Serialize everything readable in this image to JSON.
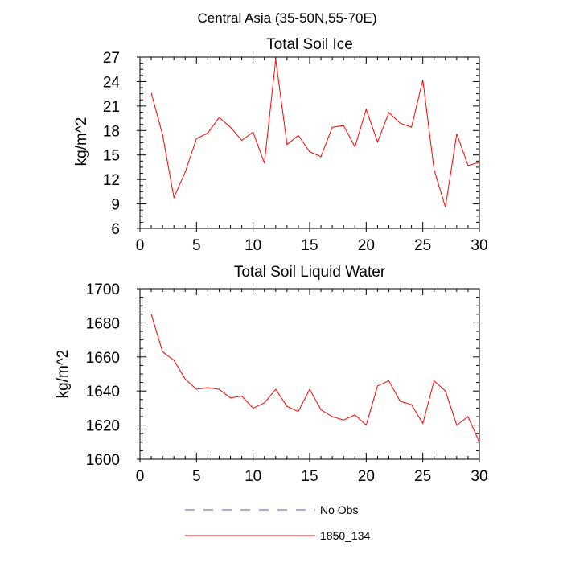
{
  "page_title": "Central Asia (35-50N,55-70E)",
  "colors": {
    "series": "#ff0000",
    "axis": "#000000",
    "no_obs": "#5a5aa0"
  },
  "legend": {
    "items": [
      {
        "label": "No Obs",
        "style": "dashed",
        "color": "#5a5aa0"
      },
      {
        "label": "1850_134",
        "style": "solid",
        "color": "#ff0000"
      }
    ]
  },
  "chart_data": [
    {
      "type": "line",
      "title": "Total Soil Ice",
      "xlabel": "",
      "ylabel": "kg/m^2",
      "xlim": [
        0,
        30
      ],
      "ylim": [
        6,
        27
      ],
      "xticks": [
        0,
        5,
        10,
        15,
        20,
        25,
        30
      ],
      "yticks": [
        6,
        9,
        12,
        15,
        18,
        21,
        24,
        27
      ],
      "series": [
        {
          "name": "1850_134",
          "x": [
            1,
            2,
            3,
            4,
            5,
            6,
            7,
            8,
            9,
            10,
            11,
            12,
            13,
            14,
            15,
            16,
            17,
            18,
            19,
            20,
            21,
            22,
            23,
            24,
            25,
            26,
            27,
            28,
            29,
            30
          ],
          "y": [
            22.6,
            17.5,
            9.8,
            12.9,
            17.0,
            17.7,
            19.6,
            18.4,
            16.8,
            17.8,
            14.0,
            26.7,
            16.3,
            17.4,
            15.4,
            14.8,
            18.4,
            18.6,
            16.0,
            20.6,
            16.6,
            20.2,
            18.9,
            18.4,
            24.2,
            13.2,
            8.6,
            17.6,
            13.7,
            14.1
          ]
        }
      ]
    },
    {
      "type": "line",
      "title": "Total Soil Liquid Water",
      "xlabel": "",
      "ylabel": "kg/m^2",
      "xlim": [
        0,
        30
      ],
      "ylim": [
        1600,
        1700
      ],
      "xticks": [
        0,
        5,
        10,
        15,
        20,
        25,
        30
      ],
      "yticks": [
        1600,
        1620,
        1640,
        1660,
        1680,
        1700
      ],
      "series": [
        {
          "name": "1850_134",
          "x": [
            1,
            2,
            3,
            4,
            5,
            6,
            7,
            8,
            9,
            10,
            11,
            12,
            13,
            14,
            15,
            16,
            17,
            18,
            19,
            20,
            21,
            22,
            23,
            24,
            25,
            26,
            27,
            28,
            29,
            30
          ],
          "y": [
            1685,
            1663,
            1658,
            1647,
            1641,
            1642,
            1641,
            1636,
            1637,
            1630,
            1633,
            1641,
            1631,
            1628,
            1641,
            1629,
            1625,
            1623,
            1626,
            1620,
            1643,
            1646,
            1634,
            1632,
            1621,
            1646,
            1640,
            1620,
            1625,
            1610
          ]
        }
      ]
    }
  ]
}
